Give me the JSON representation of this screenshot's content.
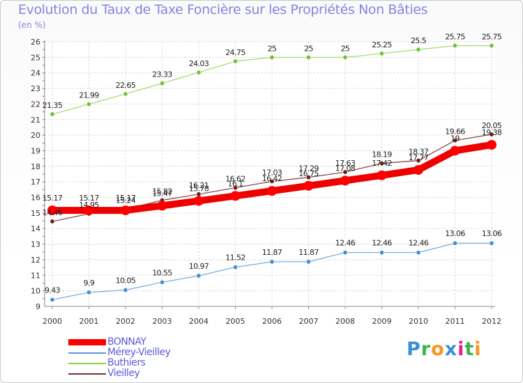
{
  "header": {
    "title": "Evolution du Taux de Taxe Foncière sur les Propriétés Non Bâties",
    "unit": "(en %)"
  },
  "logo": {
    "letters": [
      "P",
      "r",
      "o",
      "x",
      "i",
      "t",
      "i"
    ],
    "colors": [
      "#3a8fd8",
      "#39b54a",
      "#f7941d",
      "#3a8fd8",
      "#ec1c8f",
      "#39b54a",
      "#f7941d"
    ]
  },
  "chart_data": {
    "type": "line",
    "title": "Evolution du Taux de Taxe Foncière sur les Propriétés Non Bâties",
    "ylabel": "(en %)",
    "xlabel": "",
    "ylim": [
      9,
      26
    ],
    "yticks": [
      "9",
      "10",
      "11",
      "12",
      "13",
      "14",
      "15",
      "16",
      "17",
      "18",
      "19",
      "20",
      "21",
      "22",
      "23",
      "24",
      "25",
      "26"
    ],
    "categories": [
      "2000",
      "2001",
      "2002",
      "2003",
      "2004",
      "2005",
      "2006",
      "2007",
      "2008",
      "2009",
      "2010",
      "2011",
      "2012"
    ],
    "grid": true,
    "legend_position": "bottom-left",
    "series": [
      {
        "name": "BONNAY",
        "color": "#ff0000",
        "values": [
          15.17,
          15.17,
          15.17,
          15.47,
          15.78,
          16.1,
          16.42,
          16.75,
          17.08,
          17.42,
          17.77,
          19.0,
          19.38
        ],
        "labels": [
          "15.17",
          "15.17",
          "15.17",
          "15.47",
          "15.78",
          "16.1",
          "16.42",
          "16.75",
          "17.08",
          "17.42",
          "17.77",
          "19",
          "19.38"
        ]
      },
      {
        "name": "Mérey-Vieilley",
        "color": "#5b9bd5",
        "values": [
          9.43,
          9.9,
          10.05,
          10.55,
          10.97,
          11.52,
          11.87,
          11.87,
          12.46,
          12.46,
          12.46,
          13.06,
          13.06
        ],
        "labels": [
          "9.43",
          "9.9",
          "10.05",
          "10.55",
          "10.97",
          "11.52",
          "11.87",
          "11.87",
          "12.46",
          "12.46",
          "12.46",
          "13.06",
          "13.06"
        ]
      },
      {
        "name": "Buthiers",
        "color": "#8fd34a",
        "values": [
          21.35,
          21.99,
          22.65,
          23.33,
          24.03,
          24.75,
          25,
          25,
          25,
          25.25,
          25.5,
          25.75,
          25.75
        ],
        "labels": [
          "21.35",
          "21.99",
          "22.65",
          "23.33",
          "24.03",
          "24.75",
          "25",
          "25",
          "25",
          "25.25",
          "25.5",
          "25.75",
          "25.75"
        ]
      },
      {
        "name": "Vieilley",
        "color": "#7a2e2e",
        "values": [
          14.46,
          14.95,
          15.24,
          15.82,
          16.21,
          16.62,
          17.03,
          17.29,
          17.63,
          18.19,
          18.37,
          19.66,
          20.05
        ],
        "labels": [
          "14.46",
          "14.95",
          "15.24",
          "15.82",
          "16.21",
          "16.62",
          "17.03",
          "17.29",
          "17.63",
          "18.19",
          "18.37",
          "19.66",
          "20.05"
        ]
      }
    ]
  }
}
